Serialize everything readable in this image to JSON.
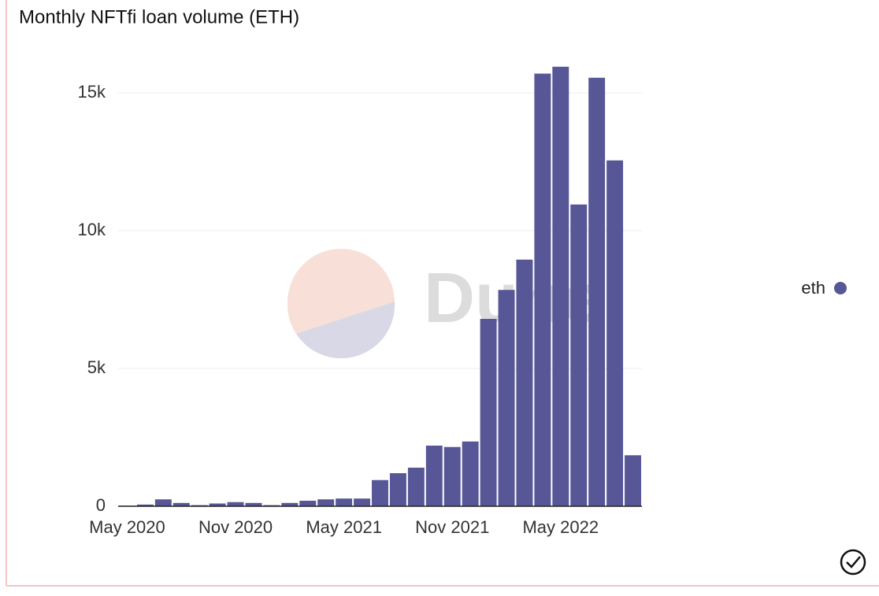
{
  "chart_data": {
    "type": "bar",
    "title": "Monthly NFTfi loan volume (ETH)",
    "watermark": "Dune",
    "categories": [
      "May 2020",
      null,
      null,
      null,
      null,
      null,
      "Nov 2020",
      null,
      null,
      null,
      null,
      null,
      "May 2021",
      null,
      null,
      null,
      null,
      null,
      "Nov 2021",
      null,
      null,
      null,
      null,
      null,
      "May 2022",
      null,
      null,
      null,
      null
    ],
    "series": [
      {
        "name": "eth",
        "color": "#575696",
        "values": [
          20,
          60,
          250,
          120,
          40,
          100,
          150,
          120,
          40,
          120,
          200,
          250,
          280,
          280,
          950,
          1200,
          1400,
          2200,
          2150,
          2350,
          6800,
          7850,
          8950,
          15700,
          15950,
          10950,
          15550,
          12550,
          1850
        ]
      }
    ],
    "ylim": [
      0,
      16500
    ],
    "yticks": [
      0,
      {
        "value": 5000,
        "label": "5k"
      },
      {
        "value": 10000,
        "label": "10k"
      },
      {
        "value": 15000,
        "label": "15k"
      }
    ],
    "grid": true,
    "legend": "right"
  }
}
